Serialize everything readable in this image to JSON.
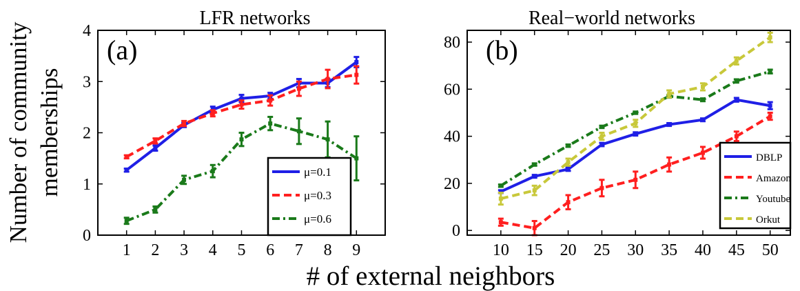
{
  "figure": {
    "ylabel_line1": "Number of community",
    "ylabel_line2": "memberships",
    "xlabel": "# of external neighbors"
  },
  "colors": {
    "blue": "#1f1fe6",
    "red": "#ff1f1f",
    "green": "#1a7a1a",
    "olive": "#c8c83a"
  },
  "chart_data": [
    {
      "type": "line",
      "panel_label": "(a)",
      "title": "LFR networks",
      "xlim": [
        0,
        10
      ],
      "ylim": [
        0,
        4
      ],
      "xticks": [
        1,
        2,
        3,
        4,
        5,
        6,
        7,
        8,
        9
      ],
      "yticks": [
        0,
        1,
        2,
        3,
        4
      ],
      "x": [
        1,
        2,
        3,
        4,
        5,
        6,
        7,
        8,
        9
      ],
      "legend_position": "lower-right",
      "series": [
        {
          "name": "μ=0.1",
          "color": "blue",
          "dash": "solid",
          "values": [
            1.27,
            1.7,
            2.15,
            2.45,
            2.67,
            2.72,
            2.97,
            2.97,
            3.38
          ],
          "errors": [
            0.03,
            0.05,
            0.04,
            0.06,
            0.07,
            0.06,
            0.08,
            0.08,
            0.1
          ]
        },
        {
          "name": "μ=0.3",
          "color": "red",
          "dash": "dash",
          "values": [
            1.53,
            1.84,
            2.18,
            2.38,
            2.55,
            2.63,
            2.86,
            3.05,
            3.13
          ],
          "errors": [
            0.03,
            0.05,
            0.05,
            0.06,
            0.08,
            0.1,
            0.14,
            0.18,
            0.17
          ]
        },
        {
          "name": "μ=0.6",
          "color": "green",
          "dash": "dashdot",
          "values": [
            0.28,
            0.5,
            1.08,
            1.25,
            1.87,
            2.18,
            2.03,
            1.87,
            1.5
          ],
          "errors": [
            0.06,
            0.06,
            0.08,
            0.12,
            0.13,
            0.13,
            0.25,
            0.35,
            0.43
          ]
        }
      ]
    },
    {
      "type": "line",
      "panel_label": "(b)",
      "title": "Real−world networks",
      "xlim": [
        5,
        53
      ],
      "ylim": [
        -2,
        85
      ],
      "xticks": [
        10,
        15,
        20,
        25,
        30,
        35,
        40,
        45,
        50
      ],
      "yticks": [
        0,
        20,
        40,
        60,
        80
      ],
      "x": [
        10,
        15,
        20,
        25,
        30,
        35,
        40,
        45,
        50
      ],
      "legend_position": "lower-right",
      "series": [
        {
          "name": "DBLP",
          "color": "blue",
          "dash": "solid",
          "values": [
            16.5,
            23,
            26,
            36.5,
            41,
            45,
            47,
            55.5,
            53
          ],
          "errors": [
            0.6,
            0.6,
            0.7,
            0.7,
            0.7,
            0.6,
            0.6,
            0.8,
            1.5
          ]
        },
        {
          "name": "Amazon",
          "color": "red",
          "dash": "dash",
          "values": [
            3.5,
            1,
            12,
            18,
            21.5,
            28,
            33,
            40,
            48.5
          ],
          "errors": [
            1.5,
            3,
            3,
            3.5,
            3.5,
            3,
            2.5,
            2,
            1.5
          ]
        },
        {
          "name": "Youtube",
          "color": "green",
          "dash": "dashdot",
          "values": [
            19,
            28,
            36,
            44,
            50,
            57,
            55.5,
            63.5,
            67.5
          ],
          "errors": [
            0.5,
            0.5,
            0.5,
            0.5,
            0.5,
            0.6,
            0.6,
            0.7,
            0.8
          ]
        },
        {
          "name": "Orkut",
          "color": "olive",
          "dash": "dash",
          "values": [
            13.5,
            17,
            29,
            40,
            45.5,
            58,
            61,
            72,
            82
          ],
          "errors": [
            2.5,
            2,
            1.5,
            1.5,
            1.5,
            1.5,
            1.5,
            1.5,
            2
          ]
        }
      ]
    }
  ]
}
